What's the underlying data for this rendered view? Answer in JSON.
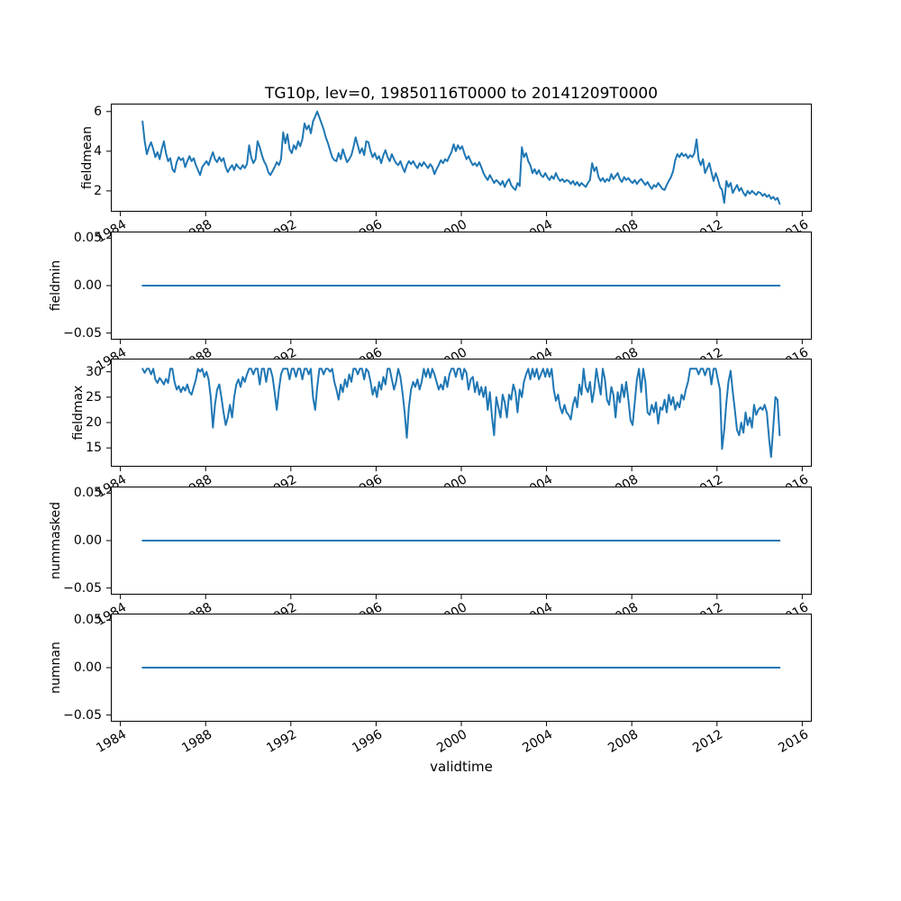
{
  "chart_data": {
    "type": "line",
    "title": "TG10p, lev=0, 19850116T0000 to 20141209T0000",
    "line_color": "#1f77b4",
    "grid": false,
    "legend": null,
    "x_axis": {
      "label": "validtime",
      "lim": [
        1983.55,
        2016.45
      ],
      "ticks": [
        1984,
        1988,
        1992,
        1996,
        2000,
        2004,
        2008,
        2012,
        2016
      ],
      "tick_labels": [
        "1984",
        "1988",
        "1992",
        "1996",
        "2000",
        "2004",
        "2008",
        "2012",
        "2016"
      ],
      "tick_rotation_deg": 30
    },
    "subplots": [
      {
        "ylabel": "fieldmean",
        "ylim": [
          0.95,
          6.4
        ],
        "yticks": [
          2,
          4,
          6
        ],
        "ytick_labels": [
          "2",
          "4",
          "6"
        ],
        "x_start": 1985.04,
        "x_step": 0.1,
        "values": [
          5.5,
          4.5,
          3.85,
          4.2,
          4.45,
          4.1,
          3.7,
          3.95,
          3.6,
          4.1,
          4.5,
          3.9,
          3.5,
          3.65,
          3.1,
          2.95,
          3.45,
          3.7,
          3.55,
          3.65,
          3.2,
          3.5,
          3.75,
          3.5,
          3.65,
          3.3,
          3.05,
          2.8,
          3.2,
          3.35,
          3.5,
          3.3,
          3.65,
          3.95,
          3.6,
          3.45,
          3.7,
          3.5,
          3.65,
          3.2,
          2.95,
          3.15,
          3.3,
          3.05,
          3.35,
          3.2,
          3.1,
          3.3,
          3.15,
          3.35,
          4.3,
          3.7,
          3.4,
          3.6,
          4.5,
          4.2,
          3.8,
          3.5,
          3.3,
          2.95,
          2.8,
          3.0,
          3.2,
          3.45,
          3.3,
          3.6,
          4.95,
          4.4,
          4.85,
          4.1,
          3.9,
          4.3,
          4.1,
          4.5,
          4.25,
          4.6,
          5.4,
          5.1,
          5.3,
          4.9,
          5.5,
          5.75,
          6.0,
          5.7,
          5.4,
          5.1,
          4.7,
          4.4,
          4.05,
          3.7,
          3.55,
          3.5,
          3.9,
          3.6,
          4.1,
          3.75,
          3.45,
          3.6,
          3.8,
          4.2,
          4.7,
          4.3,
          3.9,
          4.15,
          3.8,
          4.5,
          4.45,
          4.0,
          3.7,
          3.9,
          3.6,
          3.75,
          3.4,
          3.8,
          4.05,
          3.7,
          3.5,
          3.85,
          3.6,
          3.4,
          3.3,
          3.5,
          3.2,
          2.95,
          3.3,
          3.5,
          3.35,
          3.5,
          3.3,
          3.15,
          3.4,
          3.25,
          3.45,
          3.3,
          3.15,
          3.35,
          3.2,
          2.85,
          3.1,
          3.3,
          3.55,
          3.4,
          3.6,
          3.5,
          3.75,
          3.95,
          4.35,
          4.0,
          4.3,
          4.1,
          4.25,
          3.9,
          3.6,
          3.75,
          3.5,
          3.3,
          3.4,
          3.25,
          3.45,
          3.2,
          2.9,
          2.7,
          2.55,
          2.8,
          2.6,
          2.4,
          2.55,
          2.45,
          2.3,
          2.5,
          2.2,
          2.45,
          2.6,
          2.3,
          2.15,
          2.05,
          2.4,
          2.25,
          4.2,
          3.7,
          3.9,
          3.5,
          3.3,
          2.9,
          3.1,
          2.85,
          3.05,
          2.8,
          2.7,
          2.9,
          2.7,
          2.55,
          2.75,
          2.6,
          2.9,
          2.65,
          2.5,
          2.6,
          2.45,
          2.55,
          2.5,
          2.35,
          2.5,
          2.3,
          2.45,
          2.25,
          2.4,
          2.3,
          2.2,
          2.4,
          2.55,
          3.4,
          3.0,
          3.2,
          2.7,
          2.5,
          2.65,
          2.45,
          2.6,
          2.5,
          2.85,
          2.6,
          2.75,
          2.9,
          2.6,
          2.45,
          2.7,
          2.55,
          2.65,
          2.5,
          2.4,
          2.55,
          2.35,
          2.5,
          2.6,
          2.45,
          2.3,
          2.45,
          2.25,
          2.1,
          2.3,
          2.2,
          2.4,
          2.25,
          2.1,
          2.05,
          2.3,
          2.5,
          2.7,
          3.0,
          3.55,
          3.85,
          3.7,
          3.9,
          3.75,
          3.85,
          3.65,
          3.8,
          3.7,
          3.9,
          4.6,
          3.6,
          3.3,
          3.6,
          2.9,
          3.15,
          3.4,
          2.95,
          2.5,
          2.9,
          2.6,
          2.2,
          2.05,
          1.4,
          2.5,
          2.2,
          2.4,
          1.9,
          2.1,
          2.3,
          2.0,
          2.15,
          1.9,
          1.75,
          2.0,
          1.85,
          2.0,
          1.9,
          1.8,
          1.95,
          1.9,
          1.75,
          1.85,
          1.7,
          1.8,
          1.6,
          1.7,
          1.55,
          1.65,
          1.35
        ]
      },
      {
        "ylabel": "fieldmin",
        "ylim": [
          -0.057,
          0.057
        ],
        "yticks": [
          0.05,
          0.0,
          -0.05
        ],
        "ytick_labels": [
          "0.05",
          "0.00",
          "−0.05"
        ],
        "constant_value": 0.0,
        "x_range": [
          1985.04,
          2014.94
        ]
      },
      {
        "ylabel": "fieldmax",
        "ylim": [
          11.3,
          32.6
        ],
        "yticks": [
          15,
          20,
          25,
          30
        ],
        "ytick_labels": [
          "15",
          "20",
          "25",
          "30"
        ],
        "x_start": 1985.04,
        "x_step": 0.1,
        "values": [
          30.6,
          29.8,
          30.6,
          30.6,
          29.5,
          30.6,
          28.5,
          27.8,
          28.8,
          28.2,
          27.5,
          28.6,
          27.8,
          30.6,
          30.6,
          28.0,
          26.5,
          27.2,
          26.0,
          27.0,
          26.3,
          27.5,
          26.0,
          25.5,
          27.0,
          28.5,
          30.6,
          30.0,
          30.6,
          29.0,
          30.0,
          28.5,
          25.0,
          19.0,
          23.5,
          26.5,
          27.5,
          25.0,
          22.0,
          19.5,
          21.0,
          23.5,
          21.0,
          25.0,
          27.5,
          28.5,
          27.0,
          29.0,
          28.0,
          29.5,
          30.6,
          30.6,
          29.5,
          30.6,
          30.6,
          27.5,
          30.6,
          30.6,
          28.0,
          30.6,
          30.6,
          29.0,
          26.0,
          22.5,
          26.5,
          29.5,
          30.6,
          30.6,
          30.6,
          28.5,
          30.6,
          30.6,
          29.0,
          30.6,
          30.6,
          28.5,
          30.6,
          30.6,
          29.5,
          30.6,
          25.0,
          22.5,
          27.0,
          30.6,
          30.6,
          29.5,
          30.6,
          30.6,
          30.0,
          30.6,
          28.0,
          26.5,
          24.5,
          27.5,
          26.0,
          28.5,
          27.0,
          29.5,
          28.0,
          30.6,
          30.6,
          29.5,
          30.6,
          30.6,
          28.5,
          30.6,
          30.0,
          28.0,
          25.5,
          27.0,
          25.0,
          28.0,
          26.5,
          29.0,
          27.5,
          30.6,
          30.6,
          28.5,
          26.5,
          28.0,
          30.6,
          29.0,
          26.0,
          22.0,
          17.0,
          23.0,
          26.5,
          28.0,
          27.0,
          28.5,
          26.5,
          28.0,
          30.6,
          29.0,
          30.6,
          28.8,
          30.6,
          29.5,
          28.0,
          26.5,
          27.5,
          26.5,
          29.0,
          27.0,
          29.5,
          30.6,
          30.6,
          29.0,
          30.6,
          30.6,
          28.5,
          30.6,
          29.8,
          26.5,
          28.5,
          29.0,
          26.0,
          28.0,
          25.5,
          27.0,
          25.0,
          27.0,
          22.5,
          26.0,
          21.0,
          17.5,
          25.0,
          23.0,
          21.0,
          25.5,
          24.0,
          21.0,
          25.5,
          24.5,
          27.5,
          26.0,
          22.0,
          26.5,
          25.0,
          28.0,
          29.5,
          30.6,
          28.5,
          30.6,
          29.0,
          30.6,
          28.5,
          29.5,
          30.6,
          29.0,
          30.6,
          29.0,
          30.6,
          26.5,
          24.3,
          25.5,
          23.0,
          21.8,
          23.5,
          22.0,
          21.5,
          20.6,
          23.5,
          25.0,
          23.0,
          27.5,
          25.5,
          30.6,
          27.0,
          26.0,
          28.0,
          24.0,
          26.5,
          30.6,
          28.0,
          25.5,
          30.6,
          28.5,
          24.5,
          23.5,
          27.0,
          25.5,
          21.0,
          26.0,
          24.0,
          27.5,
          25.0,
          28.0,
          24.5,
          20.5,
          19.5,
          24.0,
          28.5,
          30.6,
          26.0,
          30.6,
          28.0,
          22.0,
          21.5,
          23.5,
          22.0,
          24.0,
          19.8,
          23.0,
          22.5,
          24.5,
          22.0,
          25.5,
          23.5,
          25.0,
          22.5,
          24.0,
          23.0,
          25.5,
          24.5,
          26.5,
          28.0,
          30.6,
          30.6,
          30.6,
          30.6,
          29.5,
          30.6,
          30.6,
          29.3,
          30.6,
          30.6,
          27.5,
          30.6,
          30.6,
          28.5,
          26.5,
          14.8,
          18.5,
          24.0,
          28.0,
          30.2,
          26.0,
          22.5,
          18.5,
          17.5,
          20.0,
          18.0,
          22.0,
          19.5,
          21.0,
          19.0,
          23.5,
          21.5,
          22.5,
          23.0,
          22.5,
          23.5,
          22.0,
          17.0,
          13.2,
          19.0,
          25.0,
          24.5,
          17.5
        ]
      },
      {
        "ylabel": "nummasked",
        "ylim": [
          -0.057,
          0.057
        ],
        "yticks": [
          0.05,
          0.0,
          -0.05
        ],
        "ytick_labels": [
          "0.05",
          "0.00",
          "−0.05"
        ],
        "constant_value": 0.0,
        "x_range": [
          1985.04,
          2014.94
        ]
      },
      {
        "ylabel": "numnan",
        "ylim": [
          -0.057,
          0.057
        ],
        "yticks": [
          0.05,
          0.0,
          -0.05
        ],
        "ytick_labels": [
          "0.05",
          "0.00",
          "−0.05"
        ],
        "constant_value": 0.0,
        "x_range": [
          1985.04,
          2014.94
        ]
      }
    ]
  }
}
